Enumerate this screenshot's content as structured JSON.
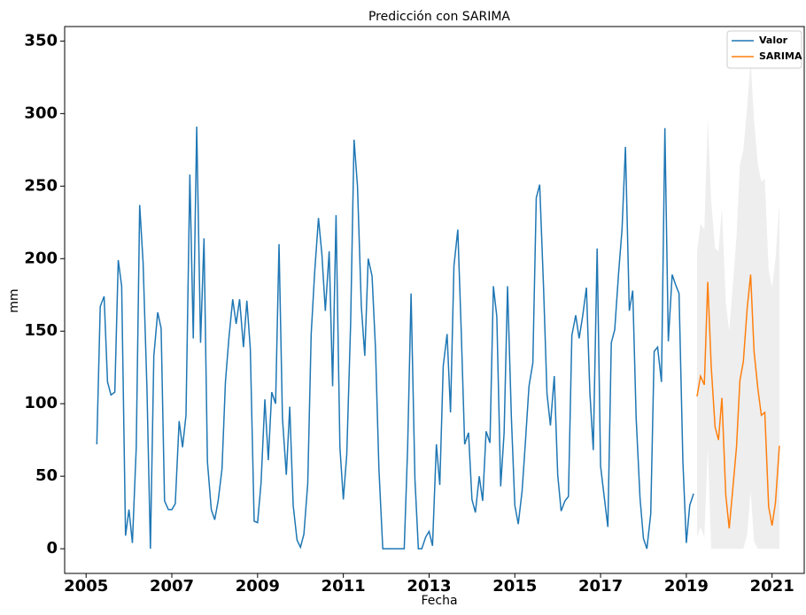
{
  "chart_data": {
    "type": "line",
    "title": "Predicción con SARIMA",
    "xlabel": "Fecha",
    "ylabel": "mm",
    "xlim": [
      2004.5,
      2021.75
    ],
    "xticks": [
      2005,
      2007,
      2009,
      2011,
      2013,
      2015,
      2017,
      2019,
      2021
    ],
    "ylim": [
      -17,
      360
    ],
    "yticks": [
      0,
      50,
      100,
      150,
      200,
      250,
      300,
      350
    ],
    "legend": "upper right",
    "series": [
      {
        "name": "Valor",
        "color": "#1f77b4",
        "x": [
          2005.25,
          2005.33,
          2005.42,
          2005.5,
          2005.58,
          2005.67,
          2005.75,
          2005.83,
          2005.92,
          2006,
          2006.08,
          2006.17,
          2006.25,
          2006.33,
          2006.42,
          2006.5,
          2006.58,
          2006.67,
          2006.75,
          2006.83,
          2006.92,
          2007,
          2007.08,
          2007.17,
          2007.25,
          2007.33,
          2007.42,
          2007.5,
          2007.58,
          2007.67,
          2007.75,
          2007.83,
          2007.92,
          2008,
          2008.08,
          2008.17,
          2008.25,
          2008.33,
          2008.42,
          2008.5,
          2008.58,
          2008.67,
          2008.75,
          2008.83,
          2008.92,
          2009,
          2009.08,
          2009.17,
          2009.25,
          2009.33,
          2009.42,
          2009.5,
          2009.58,
          2009.67,
          2009.75,
          2009.83,
          2009.92,
          2010,
          2010.08,
          2010.17,
          2010.25,
          2010.33,
          2010.42,
          2010.5,
          2010.58,
          2010.67,
          2010.75,
          2010.83,
          2010.92,
          2011,
          2011.08,
          2011.17,
          2011.25,
          2011.33,
          2011.42,
          2011.5,
          2011.58,
          2011.67,
          2011.75,
          2011.83,
          2011.92,
          2012,
          2012.08,
          2012.17,
          2012.25,
          2012.33,
          2012.42,
          2012.5,
          2012.58,
          2012.67,
          2012.75,
          2012.83,
          2012.92,
          2013,
          2013.08,
          2013.17,
          2013.25,
          2013.33,
          2013.42,
          2013.5,
          2013.58,
          2013.67,
          2013.75,
          2013.83,
          2013.92,
          2014,
          2014.08,
          2014.17,
          2014.25,
          2014.33,
          2014.42,
          2014.5,
          2014.58,
          2014.67,
          2014.75,
          2014.83,
          2014.92,
          2015,
          2015.08,
          2015.17,
          2015.25,
          2015.33,
          2015.42,
          2015.5,
          2015.58,
          2015.67,
          2015.75,
          2015.83,
          2015.92,
          2016,
          2016.08,
          2016.17,
          2016.25,
          2016.33,
          2016.42,
          2016.5,
          2016.58,
          2016.67,
          2016.75,
          2016.83,
          2016.92,
          2017,
          2017.08,
          2017.17,
          2017.25,
          2017.33,
          2017.42,
          2017.5,
          2017.58,
          2017.67,
          2017.75,
          2017.83,
          2017.92,
          2018,
          2018.08,
          2018.17,
          2018.25,
          2018.33,
          2018.42,
          2018.5,
          2018.58,
          2018.67,
          2018.75,
          2018.83,
          2018.92,
          2019,
          2019.08,
          2019.17
        ],
        "values": [
          72,
          167,
          174,
          115,
          106,
          108,
          199,
          181,
          9,
          27,
          4,
          70,
          237,
          197,
          110,
          0,
          133,
          163,
          152,
          33,
          27,
          27,
          31,
          88,
          70,
          92,
          258,
          145,
          291,
          142,
          214,
          60,
          27,
          20,
          33,
          55,
          115,
          145,
          172,
          155,
          172,
          139,
          171,
          138,
          19,
          18,
          45,
          103,
          61,
          108,
          100,
          210,
          90,
          51,
          98,
          30,
          6,
          1,
          10,
          45,
          148,
          190,
          228,
          203,
          164,
          205,
          112,
          230,
          70,
          34,
          65,
          155,
          282,
          250,
          167,
          133,
          200,
          188,
          138,
          55,
          0,
          0,
          0,
          0,
          0,
          0,
          0,
          70,
          176,
          48,
          0,
          0,
          8,
          12,
          2,
          72,
          44,
          126,
          148,
          94,
          195,
          220,
          150,
          72,
          80,
          34,
          25,
          50,
          33,
          81,
          73,
          181,
          160,
          43,
          80,
          181,
          90,
          30,
          17,
          40,
          75,
          112,
          128,
          242,
          251,
          180,
          107,
          85,
          119,
          51,
          26,
          33,
          36,
          147,
          161,
          145,
          160,
          180,
          108,
          68,
          207,
          57,
          37,
          15,
          142,
          151,
          190,
          220,
          277,
          164,
          178,
          90,
          35,
          7,
          0,
          24,
          136,
          139,
          115,
          290,
          143,
          189,
          182,
          176,
          60,
          4,
          30,
          38
        ]
      },
      {
        "name": "SARIMA",
        "color": "#ff7f0e",
        "x": [
          2019.25,
          2019.33,
          2019.42,
          2019.5,
          2019.58,
          2019.67,
          2019.75,
          2019.83,
          2019.92,
          2020,
          2020.08,
          2020.17,
          2020.25,
          2020.33,
          2020.42,
          2020.5,
          2020.58,
          2020.67,
          2020.75,
          2020.83,
          2020.92,
          2021,
          2021.08,
          2021.17
        ],
        "values": [
          105,
          119,
          113,
          184,
          126,
          84,
          75,
          104,
          37,
          14,
          40,
          70,
          116,
          129,
          166,
          189,
          136,
          110,
          92,
          94,
          29,
          16,
          32,
          71
        ]
      }
    ],
    "confidence_interval": {
      "color": "#eeeeee",
      "x": [
        2019.25,
        2019.33,
        2019.42,
        2019.5,
        2019.58,
        2019.67,
        2019.75,
        2019.83,
        2019.92,
        2020,
        2020.08,
        2020.17,
        2020.25,
        2020.33,
        2020.42,
        2020.5,
        2020.58,
        2020.67,
        2020.75,
        2020.83,
        2020.92,
        2021,
        2021.08,
        2021.17
      ],
      "lower": [
        8,
        15,
        8,
        70,
        0,
        0,
        0,
        0,
        0,
        0,
        0,
        0,
        0,
        0,
        10,
        40,
        5,
        0,
        0,
        0,
        0,
        0,
        0,
        0
      ],
      "upper": [
        205,
        224,
        220,
        297,
        240,
        207,
        205,
        235,
        170,
        150,
        180,
        215,
        265,
        275,
        305,
        337,
        295,
        265,
        253,
        255,
        192,
        180,
        200,
        238
      ]
    }
  }
}
